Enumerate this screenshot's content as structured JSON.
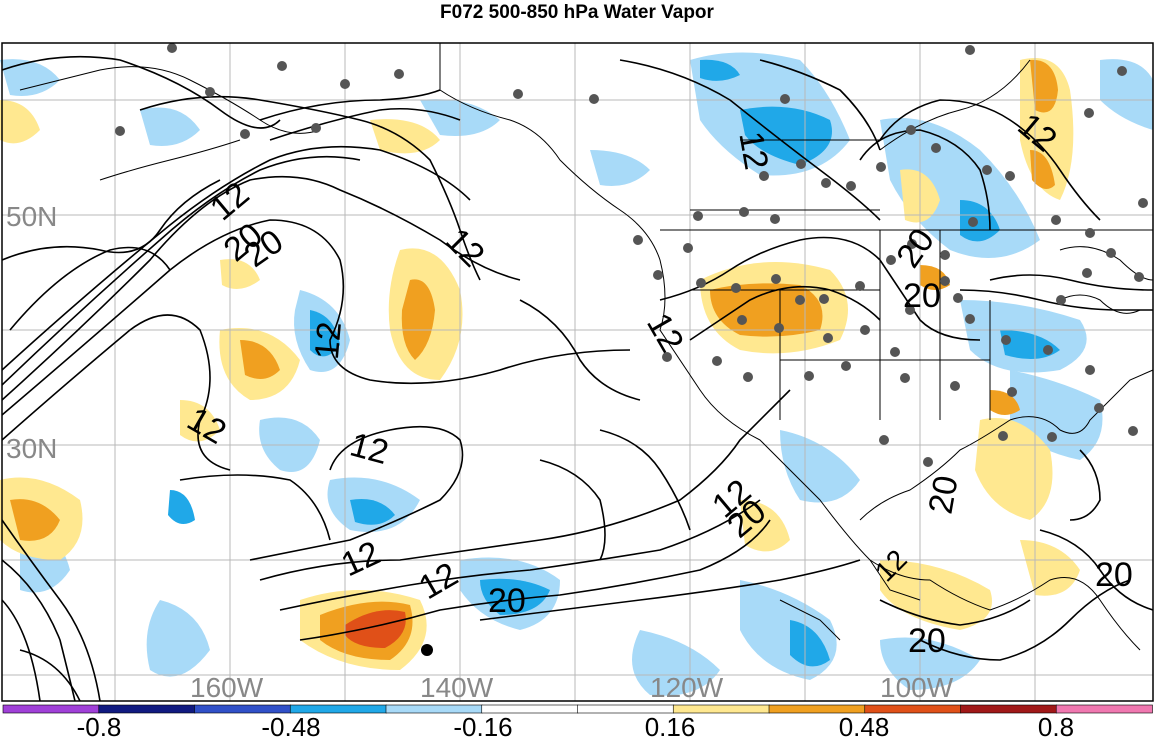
{
  "title": "F072 500-850 hPa Water Vapor",
  "lat_labels": [
    "50N",
    "30N"
  ],
  "lon_labels": [
    "160W",
    "140W",
    "120W",
    "100W"
  ],
  "contour_labels": [
    "12",
    "20",
    "20",
    "12",
    "12",
    "12",
    "12",
    "12",
    "12",
    "12",
    "20",
    "12",
    "20",
    "12",
    "20",
    "20",
    "12",
    "20",
    "20",
    "12",
    "20"
  ],
  "colorbar": {
    "tick_labels": [
      "-0.8",
      "-0.48",
      "-0.16",
      "0.16",
      "0.48",
      "0.8"
    ],
    "colors": [
      "#a040d8",
      "#101a80",
      "#3050c8",
      "#20a8e8",
      "#a8daf8",
      "#ffffff",
      "#ffffff",
      "#ffe890",
      "#f0a020",
      "#e05018",
      "#a01818",
      "#f078b0"
    ]
  },
  "colors": {
    "light_blue": "#a8daf8",
    "blue": "#20a8e8",
    "yellow": "#ffe890",
    "orange": "#f0a020",
    "red": "#e05018",
    "station_dot": "#555555",
    "grid_label": "#888888"
  }
}
